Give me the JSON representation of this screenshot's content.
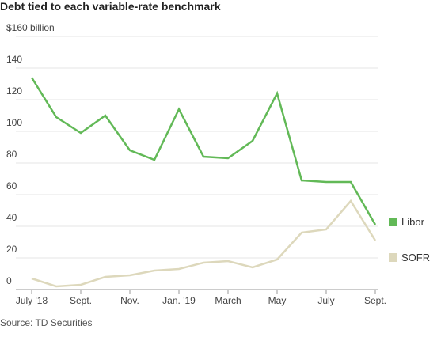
{
  "chart_data": {
    "type": "line",
    "title": "Debt tied to each variable-rate benchmark",
    "source": "Source: TD Securities",
    "categories": [
      "July '18",
      null,
      "Sept.",
      null,
      "Nov.",
      null,
      "Jan. '19",
      null,
      "March",
      null,
      "May",
      null,
      "July",
      null,
      "Sept."
    ],
    "series": [
      {
        "name": "Libor",
        "color": "#62b957",
        "values": [
          134,
          109,
          99,
          110,
          88,
          82,
          114,
          84,
          83,
          94,
          124,
          69,
          68,
          68,
          41
        ]
      },
      {
        "name": "SOFR",
        "color": "#ddd8bc",
        "values": [
          7,
          2,
          3,
          8,
          9,
          12,
          13,
          17,
          18,
          14,
          19,
          36,
          38,
          56,
          31
        ]
      }
    ],
    "ylim": [
      0,
      160
    ],
    "yticks": [
      0,
      20,
      40,
      60,
      80,
      100,
      120,
      140,
      {
        "value": 160,
        "label": "$160 billion"
      }
    ],
    "grid": true,
    "legend": "right"
  }
}
